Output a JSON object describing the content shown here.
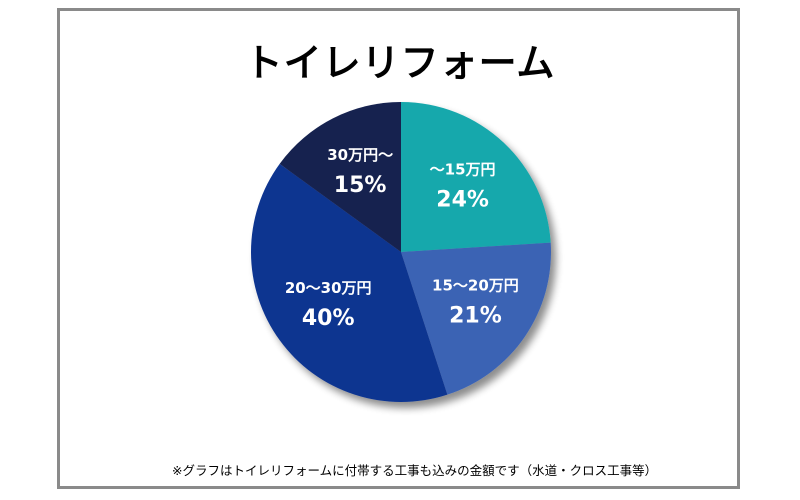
{
  "chart_data": {
    "type": "pie",
    "title": "トイレリフォーム",
    "categories": [
      "〜15万円",
      "15〜20万円",
      "20〜30万円",
      "30万円〜"
    ],
    "values": [
      24,
      21,
      40,
      15
    ],
    "value_labels": [
      "24%",
      "21%",
      "40%",
      "15%"
    ],
    "colors": [
      "#17a8ac",
      "#3b63b4",
      "#0e3490",
      "#142150"
    ],
    "legend": "none",
    "start": "12 o'clock, clockwise"
  },
  "footnote": "※グラフはトイレリフォームに付帯する工事も込みの金額です（水道・クロス工事等）"
}
